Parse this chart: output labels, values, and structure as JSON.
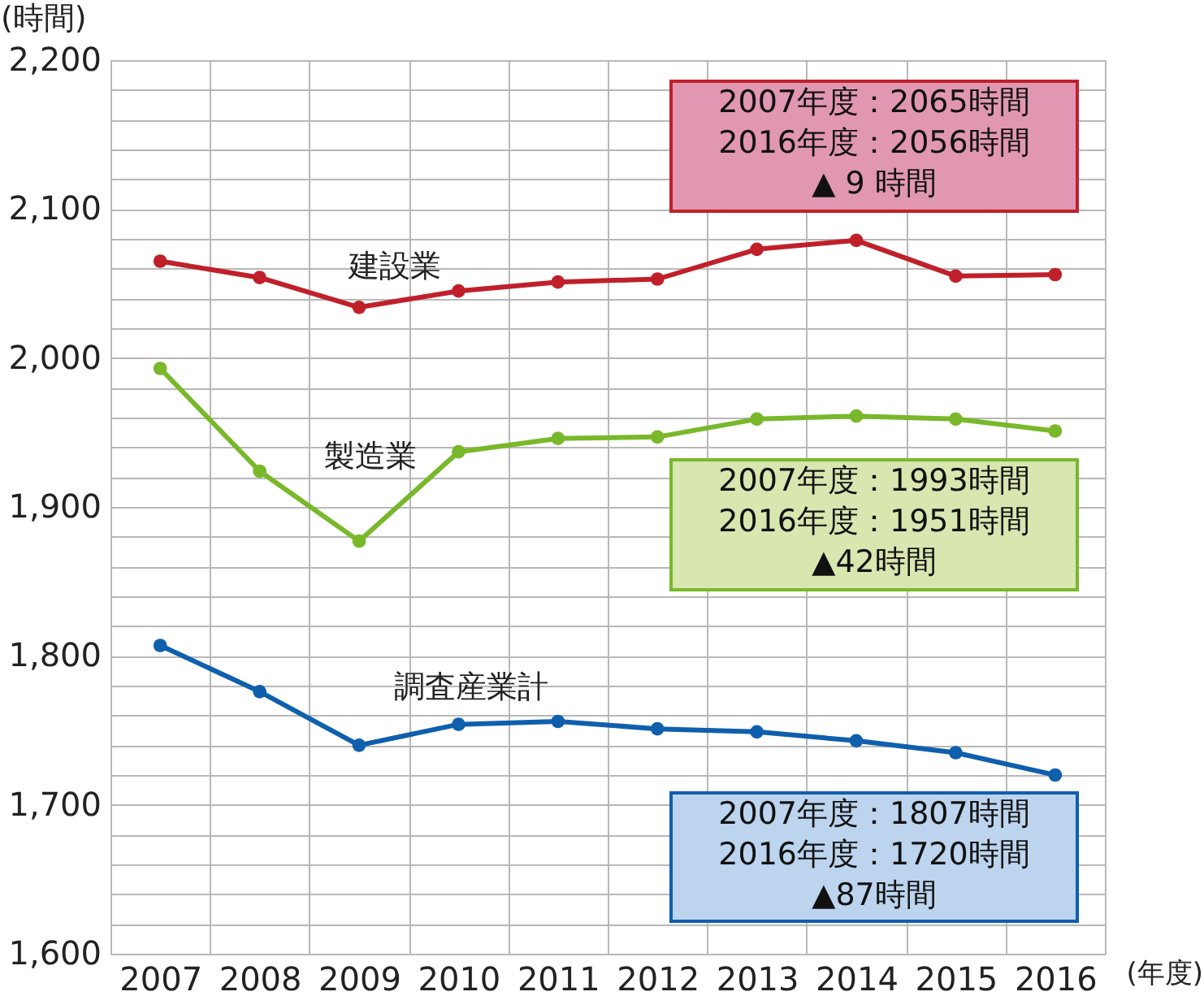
{
  "chart_data": {
    "type": "line",
    "xlabel": "(年度)",
    "ylabel": "(時間)",
    "categories": [
      "2007",
      "2008",
      "2009",
      "2010",
      "2011",
      "2012",
      "2013",
      "2014",
      "2015",
      "2016"
    ],
    "series": [
      {
        "name": "建設業",
        "color": "#c0202a",
        "values": [
          2065,
          2054,
          2034,
          2045,
          2051,
          2053,
          2073,
          2079,
          2055,
          2056
        ]
      },
      {
        "name": "製造業",
        "color": "#78b82a",
        "values": [
          1993,
          1924,
          1877,
          1937,
          1946,
          1947,
          1959,
          1961,
          1959,
          1951
        ]
      },
      {
        "name": "調査産業計",
        "color": "#0f5fad",
        "values": [
          1807,
          1776,
          1740,
          1754,
          1756,
          1751,
          1749,
          1743,
          1735,
          1720
        ]
      }
    ],
    "ylim": [
      1600,
      2200
    ],
    "yticks": [
      {
        "value": 1600,
        "label": "1,600"
      },
      {
        "value": 1620,
        "label": null
      },
      {
        "value": 1640,
        "label": null
      },
      {
        "value": 1660,
        "label": null
      },
      {
        "value": 1680,
        "label": null
      },
      {
        "value": 1700,
        "label": "1,700"
      },
      {
        "value": 1720,
        "label": null
      },
      {
        "value": 1740,
        "label": null
      },
      {
        "value": 1760,
        "label": null
      },
      {
        "value": 1780,
        "label": null
      },
      {
        "value": 1800,
        "label": "1,800"
      },
      {
        "value": 1820,
        "label": null
      },
      {
        "value": 1840,
        "label": null
      },
      {
        "value": 1860,
        "label": null
      },
      {
        "value": 1880,
        "label": null
      },
      {
        "value": 1900,
        "label": "1,900"
      },
      {
        "value": 1920,
        "label": null
      },
      {
        "value": 1940,
        "label": null
      },
      {
        "value": 1960,
        "label": null
      },
      {
        "value": 1980,
        "label": null
      },
      {
        "value": 2000,
        "label": "2,000"
      },
      {
        "value": 2020,
        "label": null
      },
      {
        "value": 2040,
        "label": null
      },
      {
        "value": 2060,
        "label": null
      },
      {
        "value": 2080,
        "label": null
      },
      {
        "value": 2100,
        "label": "2,100"
      },
      {
        "value": 2120,
        "label": null
      },
      {
        "value": 2140,
        "label": null
      },
      {
        "value": 2160,
        "label": null
      },
      {
        "value": 2180,
        "label": null
      },
      {
        "value": 2200,
        "label": "2,200"
      }
    ],
    "annotations": [
      "2007年度：2065時間\n2016年度：2056時間\n▲ 9 時間",
      "2007年度：1993時間\n2016年度：1951時間\n▲42時間",
      "2007年度：1807時間\n2016年度：1720時間\n▲87時間"
    ],
    "grid": true,
    "legend": false,
    "marker": "circle",
    "line_style": "solid"
  }
}
